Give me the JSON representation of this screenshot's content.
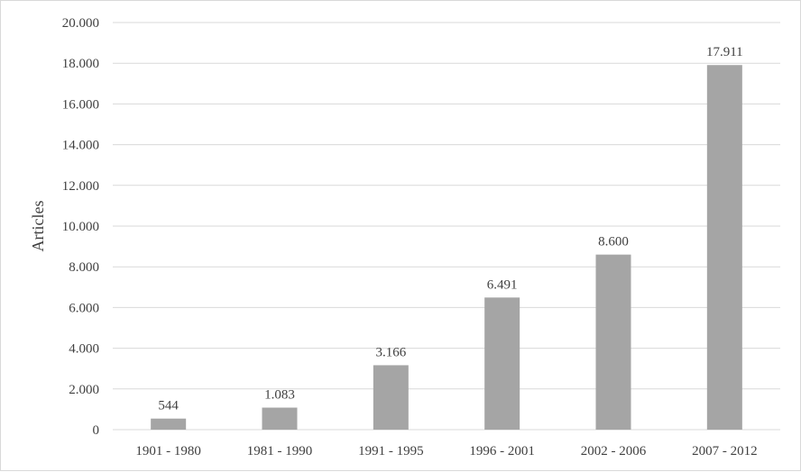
{
  "chart_data": {
    "type": "bar",
    "ylabel": "Articles",
    "xlabel": "",
    "ylim": [
      0,
      20000
    ],
    "ytick_step": 2000,
    "ytick_labels": [
      "0",
      "2.000",
      "4.000",
      "6.000",
      "8.000",
      "10.000",
      "12.000",
      "14.000",
      "16.000",
      "18.000",
      "20.000"
    ],
    "categories": [
      "1901 - 1980",
      "1981 - 1990",
      "1991 - 1995",
      "1996 - 2001",
      "2002 - 2006",
      "2007 - 2012"
    ],
    "values": [
      544,
      1083,
      3166,
      6491,
      8600,
      17911
    ],
    "value_labels": [
      "544",
      "1.083",
      "3.166",
      "6.491",
      "8.600",
      "17.911"
    ],
    "grid": true,
    "legend": "none",
    "bar_color": "#a5a5a5",
    "grid_color": "#d9d9d9"
  }
}
